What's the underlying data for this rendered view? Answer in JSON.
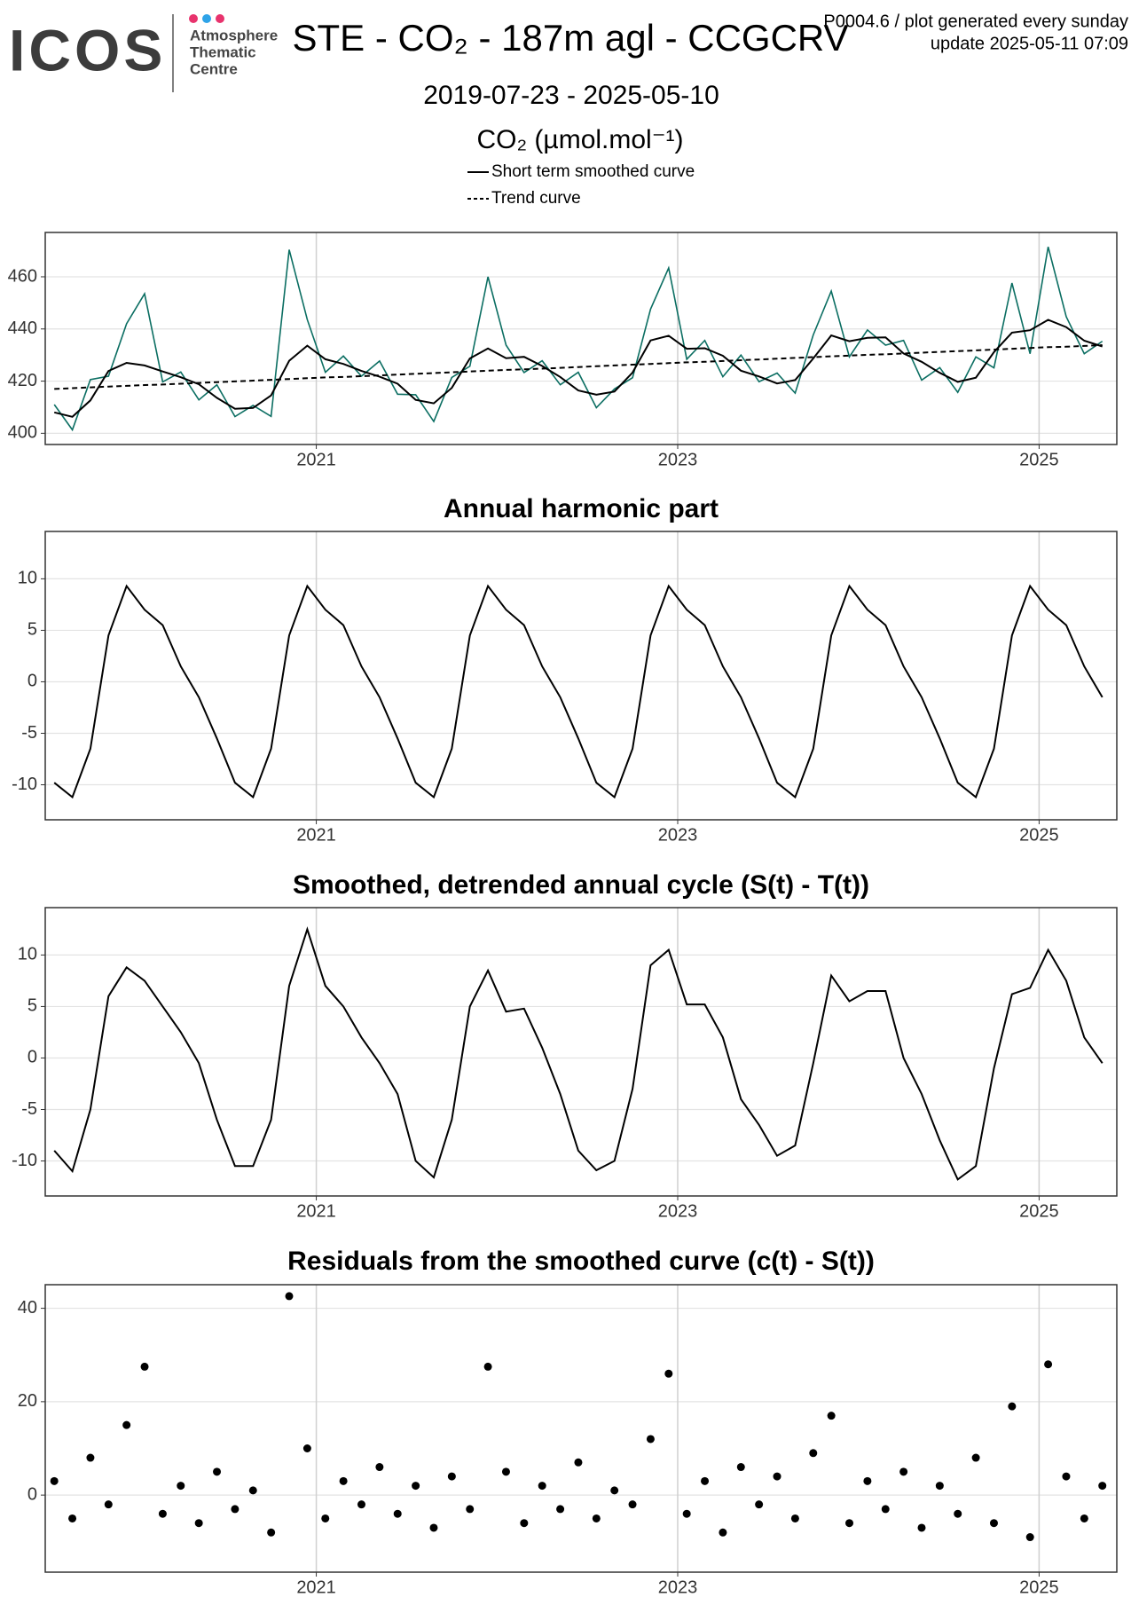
{
  "header": {
    "logo": "ICOS",
    "logo_sub": [
      "Atmosphere",
      "Thematic",
      "Centre"
    ],
    "title": "STE - CO₂ - 187m agl - CCGCRV",
    "meta": [
      "P0004.6 / plot generated every sunday",
      "update  2025-05-11 07:09"
    ]
  },
  "chart_data": [
    {
      "type": "line",
      "subtitle": "2019-07-23 - 2025-05-10",
      "y_label": "CO₂ (µmol.mol⁻¹)",
      "x": [
        2019.55,
        2019.65,
        2019.75,
        2019.85,
        2019.95,
        2020.05,
        2020.15,
        2020.25,
        2020.35,
        2020.45,
        2020.55,
        2020.65,
        2020.75,
        2020.85,
        2020.95,
        2021.05,
        2021.15,
        2021.25,
        2021.35,
        2021.45,
        2021.55,
        2021.65,
        2021.75,
        2021.85,
        2021.95,
        2022.05,
        2022.15,
        2022.25,
        2022.35,
        2022.45,
        2022.55,
        2022.65,
        2022.75,
        2022.85,
        2022.95,
        2023.05,
        2023.15,
        2023.25,
        2023.35,
        2023.45,
        2023.55,
        2023.65,
        2023.75,
        2023.85,
        2023.95,
        2024.05,
        2024.15,
        2024.25,
        2024.35,
        2024.45,
        2024.55,
        2024.65,
        2024.75,
        2024.85,
        2024.95,
        2025.05,
        2025.15,
        2025.25,
        2025.35
      ],
      "series": [
        {
          "color": "#0b6e62",
          "values": [
            411,
            401.3,
            420.6,
            421.9,
            442,
            453.5,
            419.7,
            423.5,
            412.8,
            418.6,
            406.4,
            410.7,
            406.5,
            470.4,
            443.6,
            423.4,
            429.6,
            421.9,
            427.7,
            415,
            414.8,
            404.5,
            421.4,
            425.7,
            460,
            433.8,
            423.3,
            427.8,
            418.6,
            423.4,
            409.8,
            417,
            421.3,
            447.6,
            463.4,
            428.4,
            435.6,
            421.7,
            430,
            419.8,
            423.1,
            415.4,
            437.7,
            454.5,
            429.3,
            439.6,
            433.8,
            435.6,
            420.4,
            425.2,
            415.7,
            429.3,
            425.1,
            457.6,
            430.5,
            471.5,
            444.7,
            430.5,
            435.3
          ]
        },
        {
          "name": "Short term smoothed curve",
          "color": "#000000",
          "values": [
            408,
            406.3,
            412.6,
            423.9,
            427,
            426,
            423.7,
            421.5,
            418.8,
            413.6,
            409.4,
            409.7,
            414.5,
            427.8,
            433.6,
            428.4,
            426.6,
            423.9,
            421.7,
            419,
            412.8,
            411.5,
            417.4,
            428.7,
            432.5,
            428.8,
            429.3,
            425.8,
            421.6,
            416.4,
            414.8,
            416,
            423.3,
            435.6,
            437.4,
            432.4,
            432.6,
            429.7,
            424,
            421.8,
            419.1,
            420.4,
            428.7,
            437.5,
            435.3,
            436.6,
            436.8,
            430.6,
            427.4,
            423.2,
            419.7,
            421.3,
            431.1,
            438.6,
            439.5,
            443.5,
            440.7,
            435.5,
            433.3
          ]
        },
        {
          "name": "Trend curve",
          "color": "#000000",
          "dash": true,
          "values": [
            417,
            417.3,
            417.6,
            417.9,
            418.2,
            418.5,
            418.7,
            419,
            419.3,
            419.6,
            419.9,
            420.2,
            420.5,
            420.8,
            421.1,
            421.4,
            421.6,
            421.9,
            422.2,
            422.5,
            422.8,
            423.1,
            423.4,
            423.7,
            424,
            424.3,
            424.5,
            424.8,
            425.1,
            425.4,
            425.7,
            426,
            426.3,
            426.6,
            426.9,
            427.2,
            427.4,
            427.7,
            428,
            428.3,
            428.6,
            428.9,
            429.2,
            429.5,
            429.8,
            430.1,
            430.3,
            430.6,
            430.9,
            431.2,
            431.5,
            431.8,
            432.1,
            432.4,
            432.7,
            433,
            433.2,
            433.5,
            433.8
          ]
        }
      ],
      "xlim": [
        2019.5,
        2025.43
      ],
      "xticks": [
        2021,
        2023,
        2025
      ],
      "ylim": [
        395.7,
        477
      ],
      "yticks": [
        400,
        420,
        440,
        460
      ],
      "grid": true
    },
    {
      "type": "line",
      "title": "Annual harmonic part",
      "x": [
        2019.55,
        2019.65,
        2019.75,
        2019.85,
        2019.95,
        2020.05,
        2020.15,
        2020.25,
        2020.35,
        2020.45,
        2020.55,
        2020.65,
        2020.75,
        2020.85,
        2020.95,
        2021.05,
        2021.15,
        2021.25,
        2021.35,
        2021.45,
        2021.55,
        2021.65,
        2021.75,
        2021.85,
        2021.95,
        2022.05,
        2022.15,
        2022.25,
        2022.35,
        2022.45,
        2022.55,
        2022.65,
        2022.75,
        2022.85,
        2022.95,
        2023.05,
        2023.15,
        2023.25,
        2023.35,
        2023.45,
        2023.55,
        2023.65,
        2023.75,
        2023.85,
        2023.95,
        2024.05,
        2024.15,
        2024.25,
        2024.35,
        2024.45,
        2024.55,
        2024.65,
        2024.75,
        2024.85,
        2024.95,
        2025.05,
        2025.15,
        2025.25,
        2025.35
      ],
      "series": [
        {
          "color": "#000000",
          "values": [
            -9.8,
            -11.2,
            -6.5,
            4.5,
            9.3,
            7,
            5.5,
            1.5,
            -1.5,
            -5.5,
            -9.8,
            -11.2,
            -6.5,
            4.5,
            9.3,
            7,
            5.5,
            1.5,
            -1.5,
            -5.5,
            -9.8,
            -11.2,
            -6.5,
            4.5,
            9.3,
            7,
            5.5,
            1.5,
            -1.5,
            -5.5,
            -9.8,
            -11.2,
            -6.5,
            4.5,
            9.3,
            7,
            5.5,
            1.5,
            -1.5,
            -5.5,
            -9.8,
            -11.2,
            -6.5,
            4.5,
            9.3,
            7,
            5.5,
            1.5,
            -1.5,
            -5.5,
            -9.8,
            -11.2,
            -6.5,
            4.5,
            9.3,
            7,
            5.5,
            1.5,
            -1.5
          ]
        }
      ],
      "xlim": [
        2019.5,
        2025.43
      ],
      "xticks": [
        2021,
        2023,
        2025
      ],
      "ylim": [
        -13.4,
        14.6
      ],
      "yticks": [
        -10,
        -5,
        0,
        5,
        10
      ],
      "grid": true
    },
    {
      "type": "line",
      "title": "Smoothed, detrended annual cycle (S(t) - T(t))",
      "x": [
        2019.55,
        2019.65,
        2019.75,
        2019.85,
        2019.95,
        2020.05,
        2020.15,
        2020.25,
        2020.35,
        2020.45,
        2020.55,
        2020.65,
        2020.75,
        2020.85,
        2020.95,
        2021.05,
        2021.15,
        2021.25,
        2021.35,
        2021.45,
        2021.55,
        2021.65,
        2021.75,
        2021.85,
        2021.95,
        2022.05,
        2022.15,
        2022.25,
        2022.35,
        2022.45,
        2022.55,
        2022.65,
        2022.75,
        2022.85,
        2022.95,
        2023.05,
        2023.15,
        2023.25,
        2023.35,
        2023.45,
        2023.55,
        2023.65,
        2023.75,
        2023.85,
        2023.95,
        2024.05,
        2024.15,
        2024.25,
        2024.35,
        2024.45,
        2024.55,
        2024.65,
        2024.75,
        2024.85,
        2024.95,
        2025.05,
        2025.15,
        2025.25,
        2025.35
      ],
      "series": [
        {
          "color": "#000000",
          "values": [
            -9,
            -11,
            -5,
            6,
            8.8,
            7.5,
            5,
            2.5,
            -0.5,
            -6,
            -10.5,
            -10.5,
            -6,
            7,
            12.5,
            7,
            5,
            2,
            -0.5,
            -3.5,
            -10,
            -11.6,
            -6,
            5,
            8.5,
            4.5,
            4.8,
            1,
            -3.5,
            -9,
            -10.9,
            -10,
            -3,
            9,
            10.5,
            5.2,
            5.2,
            2,
            -4,
            -6.5,
            -9.5,
            -8.5,
            -0.5,
            8,
            5.5,
            6.5,
            6.5,
            0,
            -3.5,
            -8,
            -11.8,
            -10.5,
            -1,
            6.2,
            6.8,
            10.5,
            7.5,
            2,
            -0.5
          ]
        }
      ],
      "xlim": [
        2019.5,
        2025.43
      ],
      "xticks": [
        2021,
        2023,
        2025
      ],
      "ylim": [
        -13.4,
        14.6
      ],
      "yticks": [
        -10,
        -5,
        0,
        5,
        10
      ],
      "grid": true
    },
    {
      "type": "scatter",
      "title": "Residuals from the smoothed curve (c(t) - S(t))",
      "x": [
        2019.55,
        2019.65,
        2019.75,
        2019.85,
        2019.95,
        2020.05,
        2020.15,
        2020.25,
        2020.35,
        2020.45,
        2020.55,
        2020.65,
        2020.75,
        2020.85,
        2020.95,
        2021.05,
        2021.15,
        2021.25,
        2021.35,
        2021.45,
        2021.55,
        2021.65,
        2021.75,
        2021.85,
        2021.95,
        2022.05,
        2022.15,
        2022.25,
        2022.35,
        2022.45,
        2022.55,
        2022.65,
        2022.75,
        2022.85,
        2022.95,
        2023.05,
        2023.15,
        2023.25,
        2023.35,
        2023.45,
        2023.55,
        2023.65,
        2023.75,
        2023.85,
        2023.95,
        2024.05,
        2024.15,
        2024.25,
        2024.35,
        2024.45,
        2024.55,
        2024.65,
        2024.75,
        2024.85,
        2024.95,
        2025.05,
        2025.15,
        2025.25,
        2025.35
      ],
      "series": [
        {
          "color": "#000000",
          "values": [
            3,
            -5,
            8,
            -2,
            15,
            27.5,
            -4,
            2,
            -6,
            5,
            -3,
            1,
            -8,
            42.6,
            10,
            -5,
            3,
            -2,
            6,
            -4,
            2,
            -7,
            4,
            -3,
            27.5,
            5,
            -6,
            2,
            -3,
            7,
            -5,
            1,
            -2,
            12,
            26,
            -4,
            3,
            -8,
            6,
            -2,
            4,
            -5,
            9,
            17,
            -6,
            3,
            -3,
            5,
            -7,
            2,
            -4,
            8,
            -6,
            19,
            -9,
            28,
            4,
            -5,
            2
          ]
        }
      ],
      "xlim": [
        2019.5,
        2025.43
      ],
      "xticks": [
        2021,
        2023,
        2025
      ],
      "ylim": [
        -16.5,
        45.05
      ],
      "yticks": [
        0,
        20,
        40
      ],
      "grid": true
    }
  ]
}
